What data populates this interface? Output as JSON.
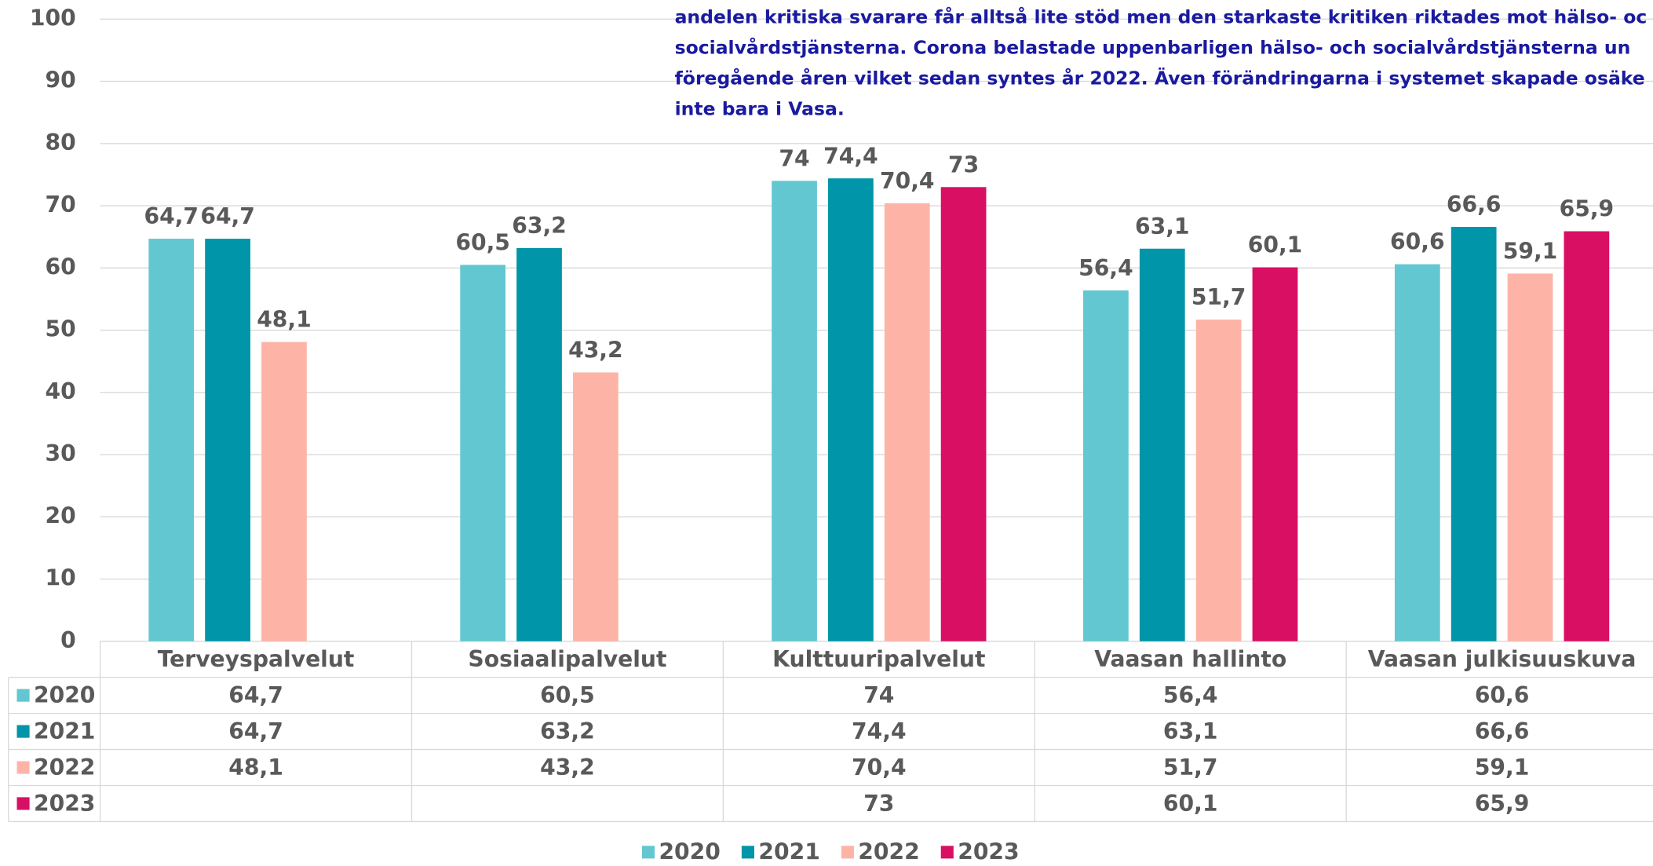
{
  "chart_data": {
    "type": "bar",
    "annotation": [
      "andelen kritiska svarare får alltså lite stöd men den starkaste kritiken riktades mot hälso- oc",
      "socialvårdstjänsterna. Corona belastade uppenbarligen hälso- och socialvårdstjänsterna un",
      "föregående åren vilket sedan syntes år 2022. Även förändringarna i systemet skapade osäke",
      "inte bara i Vasa."
    ],
    "categories": [
      "Terveyspalvelut",
      "Sosiaalipalvelut",
      "Kulttuuripalvelut",
      "Vaasan hallinto",
      "Vaasan julkisuuskuva"
    ],
    "series": [
      {
        "name": "2020",
        "color": "#63c7d1",
        "values": [
          64.7,
          60.5,
          74,
          56.4,
          60.6
        ],
        "value_labels": [
          "64,7",
          "60,5",
          "74",
          "56,4",
          "60,6"
        ]
      },
      {
        "name": "2021",
        "color": "#0095a8",
        "values": [
          64.7,
          63.2,
          74.4,
          63.1,
          66.6
        ],
        "value_labels": [
          "64,7",
          "63,2",
          "74,4",
          "63,1",
          "66,6"
        ]
      },
      {
        "name": "2022",
        "color": "#fdb4a7",
        "values": [
          48.1,
          43.2,
          70.4,
          51.7,
          59.1
        ],
        "value_labels": [
          "48,1",
          "43,2",
          "70,4",
          "51,7",
          "59,1"
        ]
      },
      {
        "name": "2023",
        "color": "#d90f64",
        "values": [
          null,
          null,
          73,
          60.1,
          65.9
        ],
        "value_labels": [
          null,
          null,
          "73",
          "60,1",
          "65,9"
        ]
      }
    ],
    "ylim": [
      0,
      100
    ],
    "yticks": [
      0,
      10,
      20,
      30,
      40,
      50,
      60,
      70,
      80,
      90,
      100
    ],
    "grid": true,
    "legend": "bottom"
  }
}
